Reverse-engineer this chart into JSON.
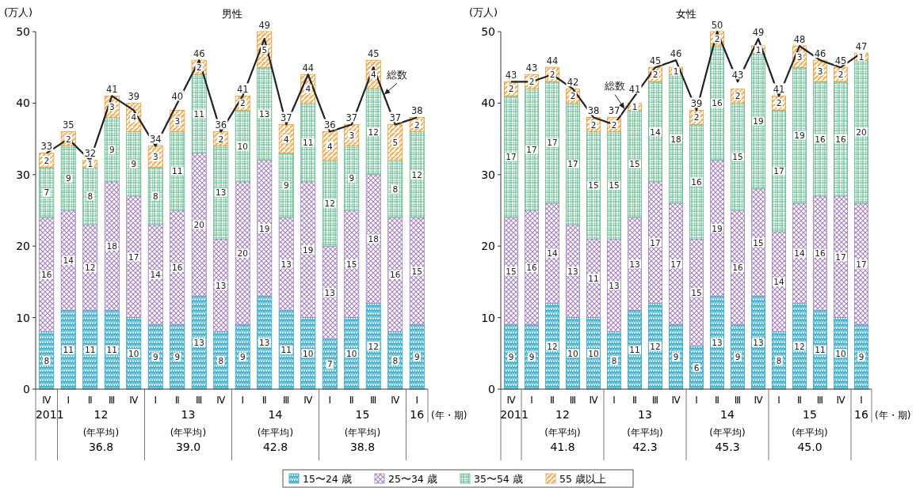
{
  "chart_data": [
    {
      "type": "bar",
      "title": "男性",
      "ylabel": "(万人)",
      "stacked": true,
      "data_labels": true,
      "legend": "bottom",
      "ylim": [
        0,
        50
      ],
      "yticks": [
        0,
        10,
        20,
        30,
        40,
        50
      ],
      "grid": false,
      "marker": "none",
      "line_style": "solid",
      "categories": [
        "Ⅳ",
        "Ⅰ",
        "Ⅱ",
        "Ⅲ",
        "Ⅳ",
        "Ⅰ",
        "Ⅱ",
        "Ⅲ",
        "Ⅳ",
        "Ⅰ",
        "Ⅱ",
        "Ⅲ",
        "Ⅳ",
        "Ⅰ",
        "Ⅱ",
        "Ⅲ",
        "Ⅳ",
        "Ⅰ"
      ],
      "series": [
        {
          "name": "15〜24 歳",
          "color": "#2aa7c9",
          "values": [
            8,
            11,
            11,
            11,
            10,
            9,
            9,
            13,
            8,
            9,
            13,
            11,
            10,
            7,
            10,
            12,
            8,
            9
          ]
        },
        {
          "name": "25〜34 歳",
          "color": "#a47fc2",
          "values": [
            16,
            14,
            12,
            18,
            17,
            14,
            16,
            20,
            13,
            20,
            19,
            13,
            19,
            13,
            15,
            18,
            16,
            15
          ]
        },
        {
          "name": "35〜54 歳",
          "color": "#5dba8c",
          "values": [
            7,
            9,
            8,
            9,
            9,
            8,
            11,
            11,
            13,
            10,
            13,
            9,
            11,
            12,
            9,
            12,
            8,
            12
          ]
        },
        {
          "name": "55 歳以上",
          "color": "#f09a2e",
          "values": [
            2,
            2,
            1,
            3,
            4,
            3,
            3,
            2,
            2,
            2,
            5,
            4,
            4,
            4,
            3,
            4,
            5,
            2
          ]
        },
        {
          "name": "総数",
          "type": "line",
          "color": "#222222",
          "values": [
            33,
            35,
            32,
            41,
            39,
            34,
            40,
            46,
            36,
            41,
            49,
            37,
            44,
            36,
            37,
            45,
            37,
            38
          ]
        }
      ],
      "annotations": [
        "2011",
        "12",
        "13",
        "14",
        "15",
        "16",
        "(年・期)",
        "(年平均)",
        "36.8",
        "(年平均)",
        "39.0",
        "(年平均)",
        "42.8",
        "(年平均)",
        "38.8"
      ]
    },
    {
      "type": "bar",
      "title": "女性",
      "ylabel": "(万人)",
      "stacked": true,
      "data_labels": true,
      "ylim": [
        0,
        50
      ],
      "yticks": [
        0,
        10,
        20,
        30,
        40,
        50
      ],
      "grid": false,
      "marker": "none",
      "line_style": "solid",
      "categories": [
        "Ⅳ",
        "Ⅰ",
        "Ⅱ",
        "Ⅲ",
        "Ⅳ",
        "Ⅰ",
        "Ⅱ",
        "Ⅲ",
        "Ⅳ",
        "Ⅰ",
        "Ⅱ",
        "Ⅲ",
        "Ⅳ",
        "Ⅰ",
        "Ⅱ",
        "Ⅲ",
        "Ⅳ",
        "Ⅰ"
      ],
      "series": [
        {
          "color": "#2aa7c9",
          "values": [
            9,
            9,
            12,
            10,
            10,
            8,
            11,
            12,
            9,
            6,
            13,
            9,
            13,
            8,
            12,
            11,
            10,
            9
          ]
        },
        {
          "color": "#a47fc2",
          "values": [
            15,
            16,
            14,
            13,
            11,
            13,
            13,
            17,
            17,
            15,
            19,
            16,
            15,
            14,
            14,
            16,
            17,
            17
          ]
        },
        {
          "color": "#5dba8c",
          "values": [
            17,
            17,
            17,
            17,
            15,
            15,
            15,
            14,
            18,
            16,
            16,
            15,
            19,
            17,
            19,
            16,
            16,
            20
          ]
        },
        {
          "color": "#f09a2e",
          "values": [
            2,
            2,
            2,
            2,
            2,
            2,
            1,
            2,
            1,
            2,
            2,
            2,
            1,
            2,
            3,
            3,
            2,
            1
          ]
        },
        {
          "name": "総数",
          "type": "line",
          "color": "#222222",
          "values": [
            43,
            43,
            44,
            42,
            38,
            37,
            41,
            45,
            46,
            39,
            50,
            43,
            49,
            41,
            48,
            46,
            45,
            47
          ]
        }
      ],
      "annotations": [
        "2011",
        "12",
        "13",
        "14",
        "15",
        "16",
        "(年・期)",
        "(年平均)",
        "41.8",
        "(年平均)",
        "42.3",
        "(年平均)",
        "45.3",
        "(年平均)",
        "45.0"
      ]
    }
  ]
}
